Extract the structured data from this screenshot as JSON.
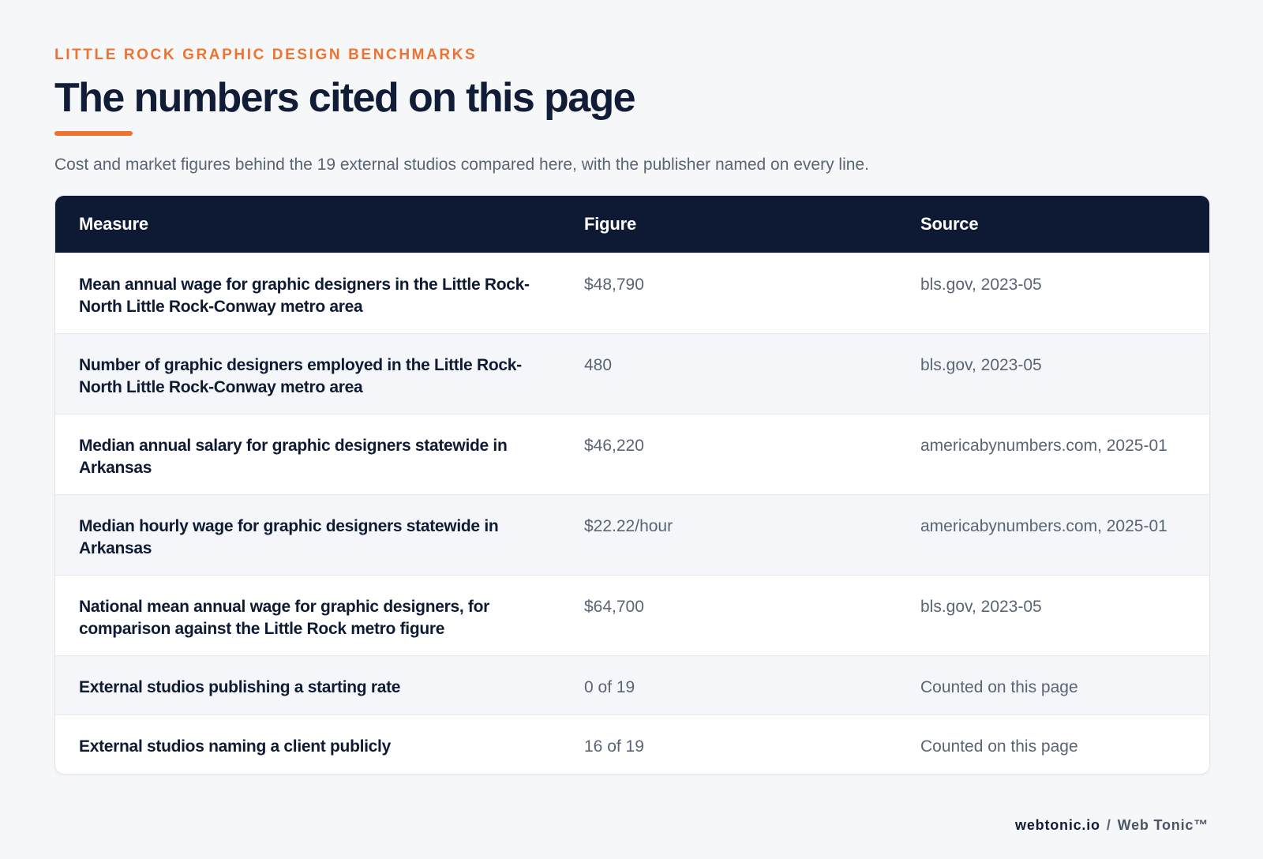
{
  "header": {
    "eyebrow": "LITTLE ROCK GRAPHIC DESIGN BENCHMARKS",
    "title": "The numbers cited on this page",
    "subtitle": "Cost and market figures behind the 19 external studios compared here, with the publisher named on every line."
  },
  "table": {
    "columns": [
      "Measure",
      "Figure",
      "Source"
    ],
    "rows": [
      {
        "measure": "Mean annual wage for graphic designers in the Little Rock-North Little Rock-Conway metro area",
        "figure": "$48,790",
        "source": "bls.gov, 2023-05"
      },
      {
        "measure": "Number of graphic designers employed in the Little Rock-North Little Rock-Conway metro area",
        "figure": "480",
        "source": "bls.gov, 2023-05"
      },
      {
        "measure": "Median annual salary for graphic designers statewide in Arkansas",
        "figure": "$46,220",
        "source": "americabynumbers.com, 2025-01"
      },
      {
        "measure": "Median hourly wage for graphic designers statewide in Arkansas",
        "figure": "$22.22/hour",
        "source": "americabynumbers.com, 2025-01"
      },
      {
        "measure": "National mean annual wage for graphic designers, for comparison against the Little Rock metro figure",
        "figure": "$64,700",
        "source": "bls.gov, 2023-05"
      },
      {
        "measure": "External studios publishing a starting rate",
        "figure": "0 of 19",
        "source": "Counted on this page"
      },
      {
        "measure": "External studios naming a client publicly",
        "figure": "16 of 19",
        "source": "Counted on this page"
      }
    ]
  },
  "footer": {
    "domain": "webtonic.io",
    "separator": "/",
    "brand": "Web Tonic™"
  },
  "colors": {
    "accent": "#ee7330",
    "header_bg": "#0e1a33",
    "text_dark": "#111c36",
    "text_muted": "#5a6475"
  }
}
